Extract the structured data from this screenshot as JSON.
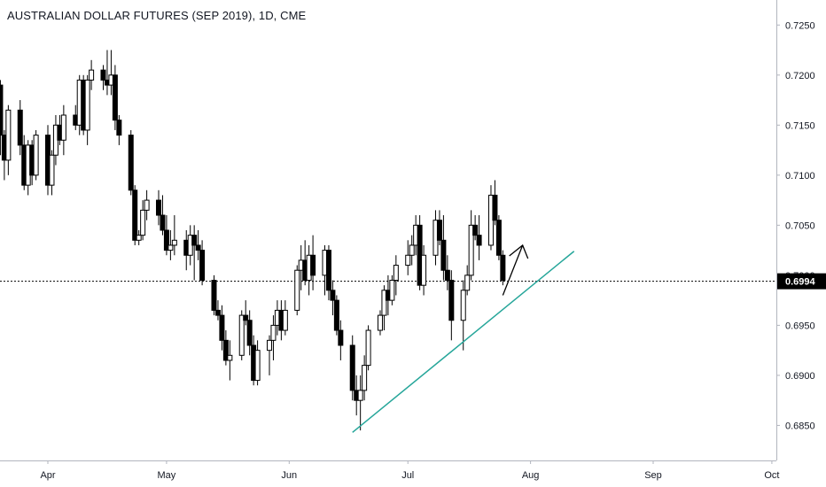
{
  "window": {
    "title": "AUSTRALIAN DOLLAR FUTURES (SEP 2019), 1D, CME"
  },
  "colors": {
    "up_candle": "#ffffff",
    "down_candle": "#000000",
    "wick": "#000000",
    "trendline": "#26a69a",
    "last_price_bg": "#000000",
    "axis_line": "#b2b5be"
  },
  "chart_data": {
    "type": "candlestick",
    "ylim": [
      0.6815,
      0.7275
    ],
    "y_ticks": [
      "0.6850",
      "0.6900",
      "0.6950",
      "0.7000",
      "0.7050",
      "0.7100",
      "0.7150",
      "0.7200",
      "0.7250"
    ],
    "x_ticks": [
      "Apr",
      "May",
      "Jun",
      "Jul",
      "Aug",
      "Sep",
      "Oct"
    ],
    "last_price": "0.6994",
    "dates": [
      "2019-03-20",
      "2019-03-21",
      "2019-03-22",
      "2019-03-25",
      "2019-03-26",
      "2019-03-27",
      "2019-03-28",
      "2019-03-29",
      "2019-04-01",
      "2019-04-02",
      "2019-04-03",
      "2019-04-04",
      "2019-04-05",
      "2019-04-08",
      "2019-04-09",
      "2019-04-10",
      "2019-04-11",
      "2019-04-12",
      "2019-04-15",
      "2019-04-16",
      "2019-04-17",
      "2019-04-18",
      "2019-04-19",
      "2019-04-22",
      "2019-04-23",
      "2019-04-24",
      "2019-04-25",
      "2019-04-26",
      "2019-04-29",
      "2019-04-30",
      "2019-05-01",
      "2019-05-02",
      "2019-05-03",
      "2019-05-06",
      "2019-05-07",
      "2019-05-08",
      "2019-05-09",
      "2019-05-10",
      "2019-05-13",
      "2019-05-14",
      "2019-05-15",
      "2019-05-16",
      "2019-05-17",
      "2019-05-20",
      "2019-05-21",
      "2019-05-22",
      "2019-05-23",
      "2019-05-24",
      "2019-05-27",
      "2019-05-28",
      "2019-05-29",
      "2019-05-30",
      "2019-05-31",
      "2019-06-03",
      "2019-06-04",
      "2019-06-05",
      "2019-06-06",
      "2019-06-07",
      "2019-06-10",
      "2019-06-11",
      "2019-06-12",
      "2019-06-13",
      "2019-06-14",
      "2019-06-17",
      "2019-06-18",
      "2019-06-19",
      "2019-06-20",
      "2019-06-21",
      "2019-06-24",
      "2019-06-25",
      "2019-06-26",
      "2019-06-27",
      "2019-06-28",
      "2019-07-01",
      "2019-07-02",
      "2019-07-03",
      "2019-07-04",
      "2019-07-05",
      "2019-07-08",
      "2019-07-09",
      "2019-07-10",
      "2019-07-11",
      "2019-07-12",
      "2019-07-15",
      "2019-07-16",
      "2019-07-17",
      "2019-07-18",
      "2019-07-19",
      "2019-07-22",
      "2019-07-23",
      "2019-07-24",
      "2019-07-25"
    ],
    "ohlc": [
      [
        0.719,
        0.7195,
        0.712,
        0.714
      ],
      [
        0.714,
        0.7145,
        0.7095,
        0.7115
      ],
      [
        0.7115,
        0.717,
        0.71,
        0.7165
      ],
      [
        0.7165,
        0.7175,
        0.712,
        0.713
      ],
      [
        0.713,
        0.714,
        0.7085,
        0.709
      ],
      [
        0.709,
        0.7135,
        0.708,
        0.713
      ],
      [
        0.713,
        0.7135,
        0.709,
        0.71
      ],
      [
        0.71,
        0.7145,
        0.7095,
        0.714
      ],
      [
        0.714,
        0.715,
        0.708,
        0.709
      ],
      [
        0.709,
        0.7125,
        0.708,
        0.712
      ],
      [
        0.712,
        0.716,
        0.711,
        0.715
      ],
      [
        0.715,
        0.716,
        0.713,
        0.7135
      ],
      [
        0.7135,
        0.717,
        0.712,
        0.716
      ],
      [
        0.716,
        0.717,
        0.7145,
        0.715
      ],
      [
        0.715,
        0.72,
        0.714,
        0.7195
      ],
      [
        0.7195,
        0.72,
        0.714,
        0.7145
      ],
      [
        0.7145,
        0.72,
        0.713,
        0.7195
      ],
      [
        0.7195,
        0.7215,
        0.7185,
        0.7205
      ],
      [
        0.7205,
        0.721,
        0.7185,
        0.7195
      ],
      [
        0.7195,
        0.7225,
        0.718,
        0.719
      ],
      [
        0.719,
        0.7225,
        0.718,
        0.72
      ],
      [
        0.72,
        0.721,
        0.7145,
        0.7155
      ],
      [
        0.7155,
        0.716,
        0.713,
        0.714
      ],
      [
        0.714,
        0.7145,
        0.708,
        0.7085
      ],
      [
        0.7085,
        0.709,
        0.703,
        0.7035
      ],
      [
        0.7035,
        0.7045,
        0.703,
        0.704
      ],
      [
        0.704,
        0.7075,
        0.7035,
        0.7065
      ],
      [
        0.7065,
        0.7085,
        0.7055,
        0.7075
      ],
      [
        0.7075,
        0.7085,
        0.705,
        0.706
      ],
      [
        0.706,
        0.708,
        0.704,
        0.7045
      ],
      [
        0.7045,
        0.706,
        0.702,
        0.7025
      ],
      [
        0.7025,
        0.7045,
        0.7015,
        0.703
      ],
      [
        0.703,
        0.706,
        0.702,
        0.7035
      ],
      [
        0.7035,
        0.7045,
        0.7005,
        0.702
      ],
      [
        0.702,
        0.705,
        0.701,
        0.704
      ],
      [
        0.704,
        0.705,
        0.6995,
        0.703
      ],
      [
        0.703,
        0.7045,
        0.7015,
        0.7025
      ],
      [
        0.7025,
        0.7035,
        0.699,
        0.6995
      ],
      [
        0.6995,
        0.7,
        0.696,
        0.6965
      ],
      [
        0.6965,
        0.6975,
        0.6955,
        0.696
      ],
      [
        0.696,
        0.697,
        0.6925,
        0.6935
      ],
      [
        0.6935,
        0.6945,
        0.691,
        0.6915
      ],
      [
        0.6915,
        0.6935,
        0.6895,
        0.692
      ],
      [
        0.692,
        0.6965,
        0.6915,
        0.696
      ],
      [
        0.696,
        0.6975,
        0.695,
        0.6955
      ],
      [
        0.6955,
        0.6965,
        0.692,
        0.693
      ],
      [
        0.693,
        0.694,
        0.689,
        0.6895
      ],
      [
        0.6895,
        0.6935,
        0.689,
        0.6925
      ],
      [
        0.6925,
        0.694,
        0.69,
        0.6935
      ],
      [
        0.6935,
        0.696,
        0.6915,
        0.695
      ],
      [
        0.695,
        0.6975,
        0.694,
        0.6965
      ],
      [
        0.6965,
        0.6975,
        0.6935,
        0.6945
      ],
      [
        0.6945,
        0.6975,
        0.694,
        0.6965
      ],
      [
        0.6965,
        0.701,
        0.696,
        0.7005
      ],
      [
        0.7005,
        0.703,
        0.6985,
        0.7015
      ],
      [
        0.7015,
        0.7035,
        0.699,
        0.6995
      ],
      [
        0.6995,
        0.703,
        0.698,
        0.702
      ],
      [
        0.702,
        0.704,
        0.6985,
        0.7
      ],
      [
        0.7,
        0.703,
        0.698,
        0.7025
      ],
      [
        0.7025,
        0.703,
        0.6975,
        0.6985
      ],
      [
        0.6985,
        0.6995,
        0.696,
        0.6975
      ],
      [
        0.6975,
        0.698,
        0.694,
        0.6945
      ],
      [
        0.6945,
        0.6955,
        0.6915,
        0.693
      ],
      [
        0.693,
        0.694,
        0.6875,
        0.6885
      ],
      [
        0.6885,
        0.69,
        0.686,
        0.6875
      ],
      [
        0.6875,
        0.69,
        0.6845,
        0.6885
      ],
      [
        0.6885,
        0.692,
        0.6875,
        0.691
      ],
      [
        0.691,
        0.695,
        0.6905,
        0.6945
      ],
      [
        0.6945,
        0.6965,
        0.694,
        0.696
      ],
      [
        0.696,
        0.699,
        0.6945,
        0.6985
      ],
      [
        0.6985,
        0.7,
        0.696,
        0.6975
      ],
      [
        0.6975,
        0.7,
        0.697,
        0.6995
      ],
      [
        0.6995,
        0.702,
        0.698,
        0.701
      ],
      [
        0.701,
        0.7035,
        0.7,
        0.702
      ],
      [
        0.702,
        0.704,
        0.701,
        0.703
      ],
      [
        0.703,
        0.706,
        0.702,
        0.705
      ],
      [
        0.705,
        0.706,
        0.6985,
        0.699
      ],
      [
        0.699,
        0.703,
        0.698,
        0.702
      ],
      [
        0.702,
        0.7065,
        0.701,
        0.7055
      ],
      [
        0.7055,
        0.7065,
        0.703,
        0.7035
      ],
      [
        0.7035,
        0.706,
        0.6995,
        0.7005
      ],
      [
        0.7005,
        0.702,
        0.6985,
        0.6995
      ],
      [
        0.6995,
        0.7005,
        0.6935,
        0.6955
      ],
      [
        0.6955,
        0.6995,
        0.6925,
        0.6985
      ],
      [
        0.6985,
        0.701,
        0.698,
        0.7
      ],
      [
        0.7,
        0.7065,
        0.6995,
        0.705
      ],
      [
        0.705,
        0.706,
        0.7035,
        0.704
      ],
      [
        0.704,
        0.706,
        0.7015,
        0.703
      ],
      [
        0.703,
        0.709,
        0.7025,
        0.708
      ],
      [
        0.708,
        0.7095,
        0.705,
        0.7055
      ],
      [
        0.7055,
        0.706,
        0.7015,
        0.702
      ],
      [
        0.702,
        0.7025,
        0.699,
        0.6995
      ]
    ],
    "annotations": {
      "trendline": {
        "from": [
          "2019-06-17",
          0.6843
        ],
        "to": [
          "2019-08-12",
          0.7024
        ]
      },
      "arrow": {
        "from": [
          "2019-07-25",
          0.698
        ],
        "to": [
          "2019-07-30",
          0.703
        ]
      }
    }
  }
}
